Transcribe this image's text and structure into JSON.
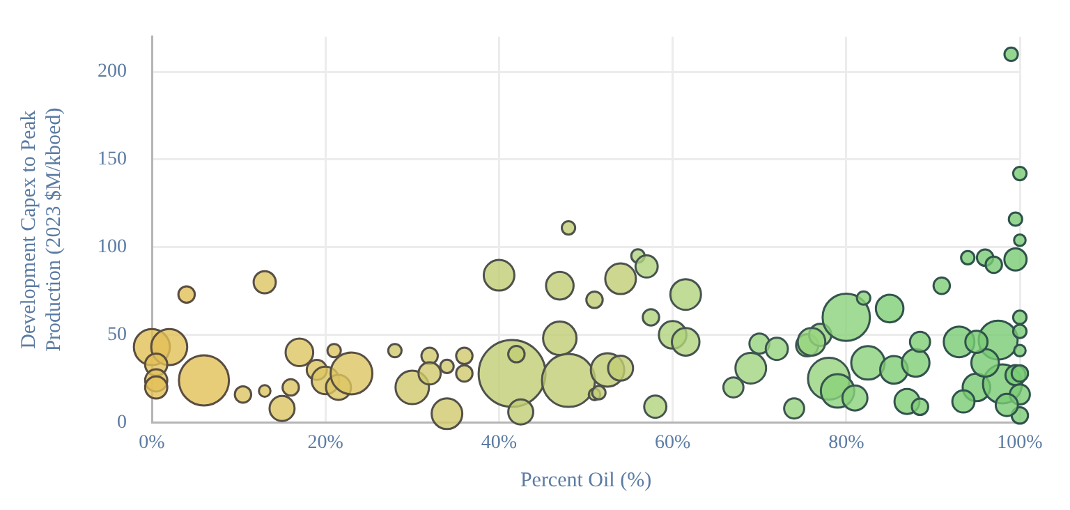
{
  "chart_data": {
    "type": "bubble",
    "xlabel": "Percent Oil (%)",
    "ylabel": "Development Capex to Peak\nProduction (2023 $M/kboed)",
    "xlim": [
      0,
      100
    ],
    "xticks": [
      {
        "value": 0,
        "label": "0%"
      },
      {
        "value": 20,
        "label": "20%"
      },
      {
        "value": 40,
        "label": "40%"
      },
      {
        "value": 60,
        "label": "60%"
      },
      {
        "value": 80,
        "label": "80%"
      },
      {
        "value": 100,
        "label": "100%"
      }
    ],
    "ylim": [
      0,
      220
    ],
    "yticks": [
      0,
      50,
      100,
      150,
      200
    ],
    "grid": true,
    "legend": false,
    "x": [
      0,
      2,
      0.5,
      0.5,
      0.5,
      4,
      13,
      6,
      10.5,
      13,
      15,
      16,
      17,
      19,
      21,
      20,
      21.5,
      23,
      28,
      30,
      32,
      32,
      34,
      34,
      36,
      36,
      40,
      41.5,
      42,
      42.5,
      47,
      47,
      48,
      48,
      51,
      52.5,
      54,
      51,
      51.5,
      54,
      56,
      57,
      57.5,
      58,
      61.5,
      60,
      61.5,
      67,
      69,
      70,
      72,
      74,
      75.5,
      77,
      78,
      80,
      76,
      82,
      85,
      79,
      81,
      82.5,
      85.5,
      88,
      88.5,
      87,
      88.5,
      91,
      94,
      96,
      97,
      99.5,
      93,
      95,
      93.5,
      97.5,
      98,
      99.5,
      99,
      100,
      99.5,
      100,
      100,
      100,
      100,
      100,
      100,
      100,
      98.5,
      96,
      95
    ],
    "values": [
      43,
      43,
      33,
      24,
      20,
      73,
      80,
      24,
      16,
      18,
      8,
      20,
      40,
      30,
      41,
      24,
      20,
      28,
      41,
      20,
      38,
      28,
      32,
      5,
      38,
      28,
      84,
      28,
      39,
      6,
      78,
      48,
      24,
      111,
      70,
      30,
      31,
      16,
      17,
      82,
      95,
      89,
      60,
      9,
      73,
      50,
      46,
      20,
      31,
      45,
      42,
      8,
      44,
      50,
      25,
      60,
      46,
      71,
      65,
      18,
      14,
      34,
      30,
      34,
      46,
      12,
      9,
      78,
      94,
      94,
      90,
      93,
      46,
      20,
      12,
      47,
      22,
      27,
      210,
      142,
      116,
      104,
      60,
      52,
      41,
      28,
      16,
      4,
      10,
      34,
      46
    ],
    "sizes": [
      0.29,
      0.29,
      0.11,
      0.11,
      0.11,
      0.06,
      0.11,
      0.56,
      0.06,
      0.03,
      0.14,
      0.06,
      0.17,
      0.09,
      0.04,
      0.17,
      0.14,
      0.39,
      0.04,
      0.25,
      0.06,
      0.11,
      0.04,
      0.21,
      0.06,
      0.06,
      0.21,
      1,
      0.06,
      0.14,
      0.17,
      0.25,
      0.63,
      0.04,
      0.06,
      0.25,
      0.14,
      0.03,
      0.04,
      0.21,
      0.04,
      0.11,
      0.06,
      0.11,
      0.21,
      0.17,
      0.17,
      0.09,
      0.21,
      0.09,
      0.11,
      0.09,
      0.11,
      0.11,
      0.39,
      0.5,
      0.17,
      0.04,
      0.17,
      0.25,
      0.14,
      0.25,
      0.17,
      0.17,
      0.09,
      0.14,
      0.06,
      0.06,
      0.04,
      0.06,
      0.06,
      0.11,
      0.21,
      0.17,
      0.11,
      0.34,
      0.34,
      0.09,
      0.04,
      0.04,
      0.04,
      0.03,
      0.04,
      0.04,
      0.03,
      0.06,
      0.09,
      0.06,
      0.11,
      0.17,
      0.11
    ],
    "colors": [
      "#e2c157",
      "#e2c157",
      "#e2c157",
      "#e2c157",
      "#e2c157",
      "#e2c157",
      "#dcc562",
      "#e2c157",
      "#dcc562",
      "#dcc562",
      "#dcc562",
      "#dcc562",
      "#dcc562",
      "#dcc562",
      "#dcc562",
      "#dcc562",
      "#dcc562",
      "#dcc562",
      "#d0c96b",
      "#d0c96b",
      "#d0c96b",
      "#d0c96b",
      "#d0c96b",
      "#d0c96b",
      "#d0c96b",
      "#d0c96b",
      "#c2cd73",
      "#c2cd73",
      "#c2cd73",
      "#c2cd73",
      "#c2cd73",
      "#c2cd73",
      "#c2cd73",
      "#c2cd73",
      "#c2cd73",
      "#c2cd73",
      "#c2cd73",
      "#c2cd73",
      "#c2cd73",
      "#c2cd73",
      "#b0d37c",
      "#b0d37c",
      "#b0d37c",
      "#b0d37c",
      "#b0d37c",
      "#b0d37c",
      "#b0d37c",
      "#a2d581",
      "#a2d581",
      "#97d47e",
      "#97d47e",
      "#97d47e",
      "#97d47e",
      "#97d47e",
      "#97d47e",
      "#8ad27a",
      "#97d47e",
      "#8ad27a",
      "#7fce76",
      "#8ad27a",
      "#8ad27a",
      "#8ad27a",
      "#7fce76",
      "#7fce76",
      "#7fce76",
      "#7fce76",
      "#7fce76",
      "#7fce76",
      "#79cc74",
      "#79cc74",
      "#79cc74",
      "#79cc74",
      "#79cc74",
      "#79cc74",
      "#79cc74",
      "#79cc74",
      "#79cc74",
      "#79cc74",
      "#79cc74",
      "#79cc74",
      "#79cc74",
      "#79cc74",
      "#79cc74",
      "#79cc74",
      "#79cc74",
      "#79cc74",
      "#79cc74",
      "#79cc74",
      "#79cc74",
      "#79cc74",
      "#79cc74"
    ]
  }
}
